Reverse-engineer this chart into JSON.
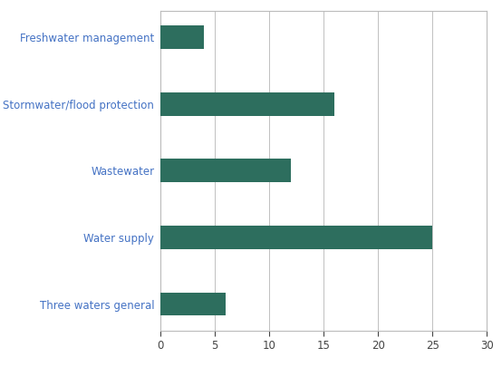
{
  "categories": [
    "Three waters general",
    "Water supply",
    "Wastewater",
    "Stormwater/flood protection",
    "Freshwater management"
  ],
  "values": [
    6,
    25,
    12,
    16,
    4
  ],
  "bar_color": "#2d6e5e",
  "label_color": "#4472c4",
  "xlim": [
    0,
    30
  ],
  "xticks": [
    0,
    5,
    10,
    15,
    20,
    25,
    30
  ],
  "background_color": "#ffffff",
  "grid_color": "#c0c0c0",
  "bar_height": 0.35,
  "figsize": [
    5.54,
    4.05
  ],
  "dpi": 100,
  "label_fontsize": 8.5,
  "tick_fontsize": 8.5,
  "border_color": "#bbbbbb"
}
